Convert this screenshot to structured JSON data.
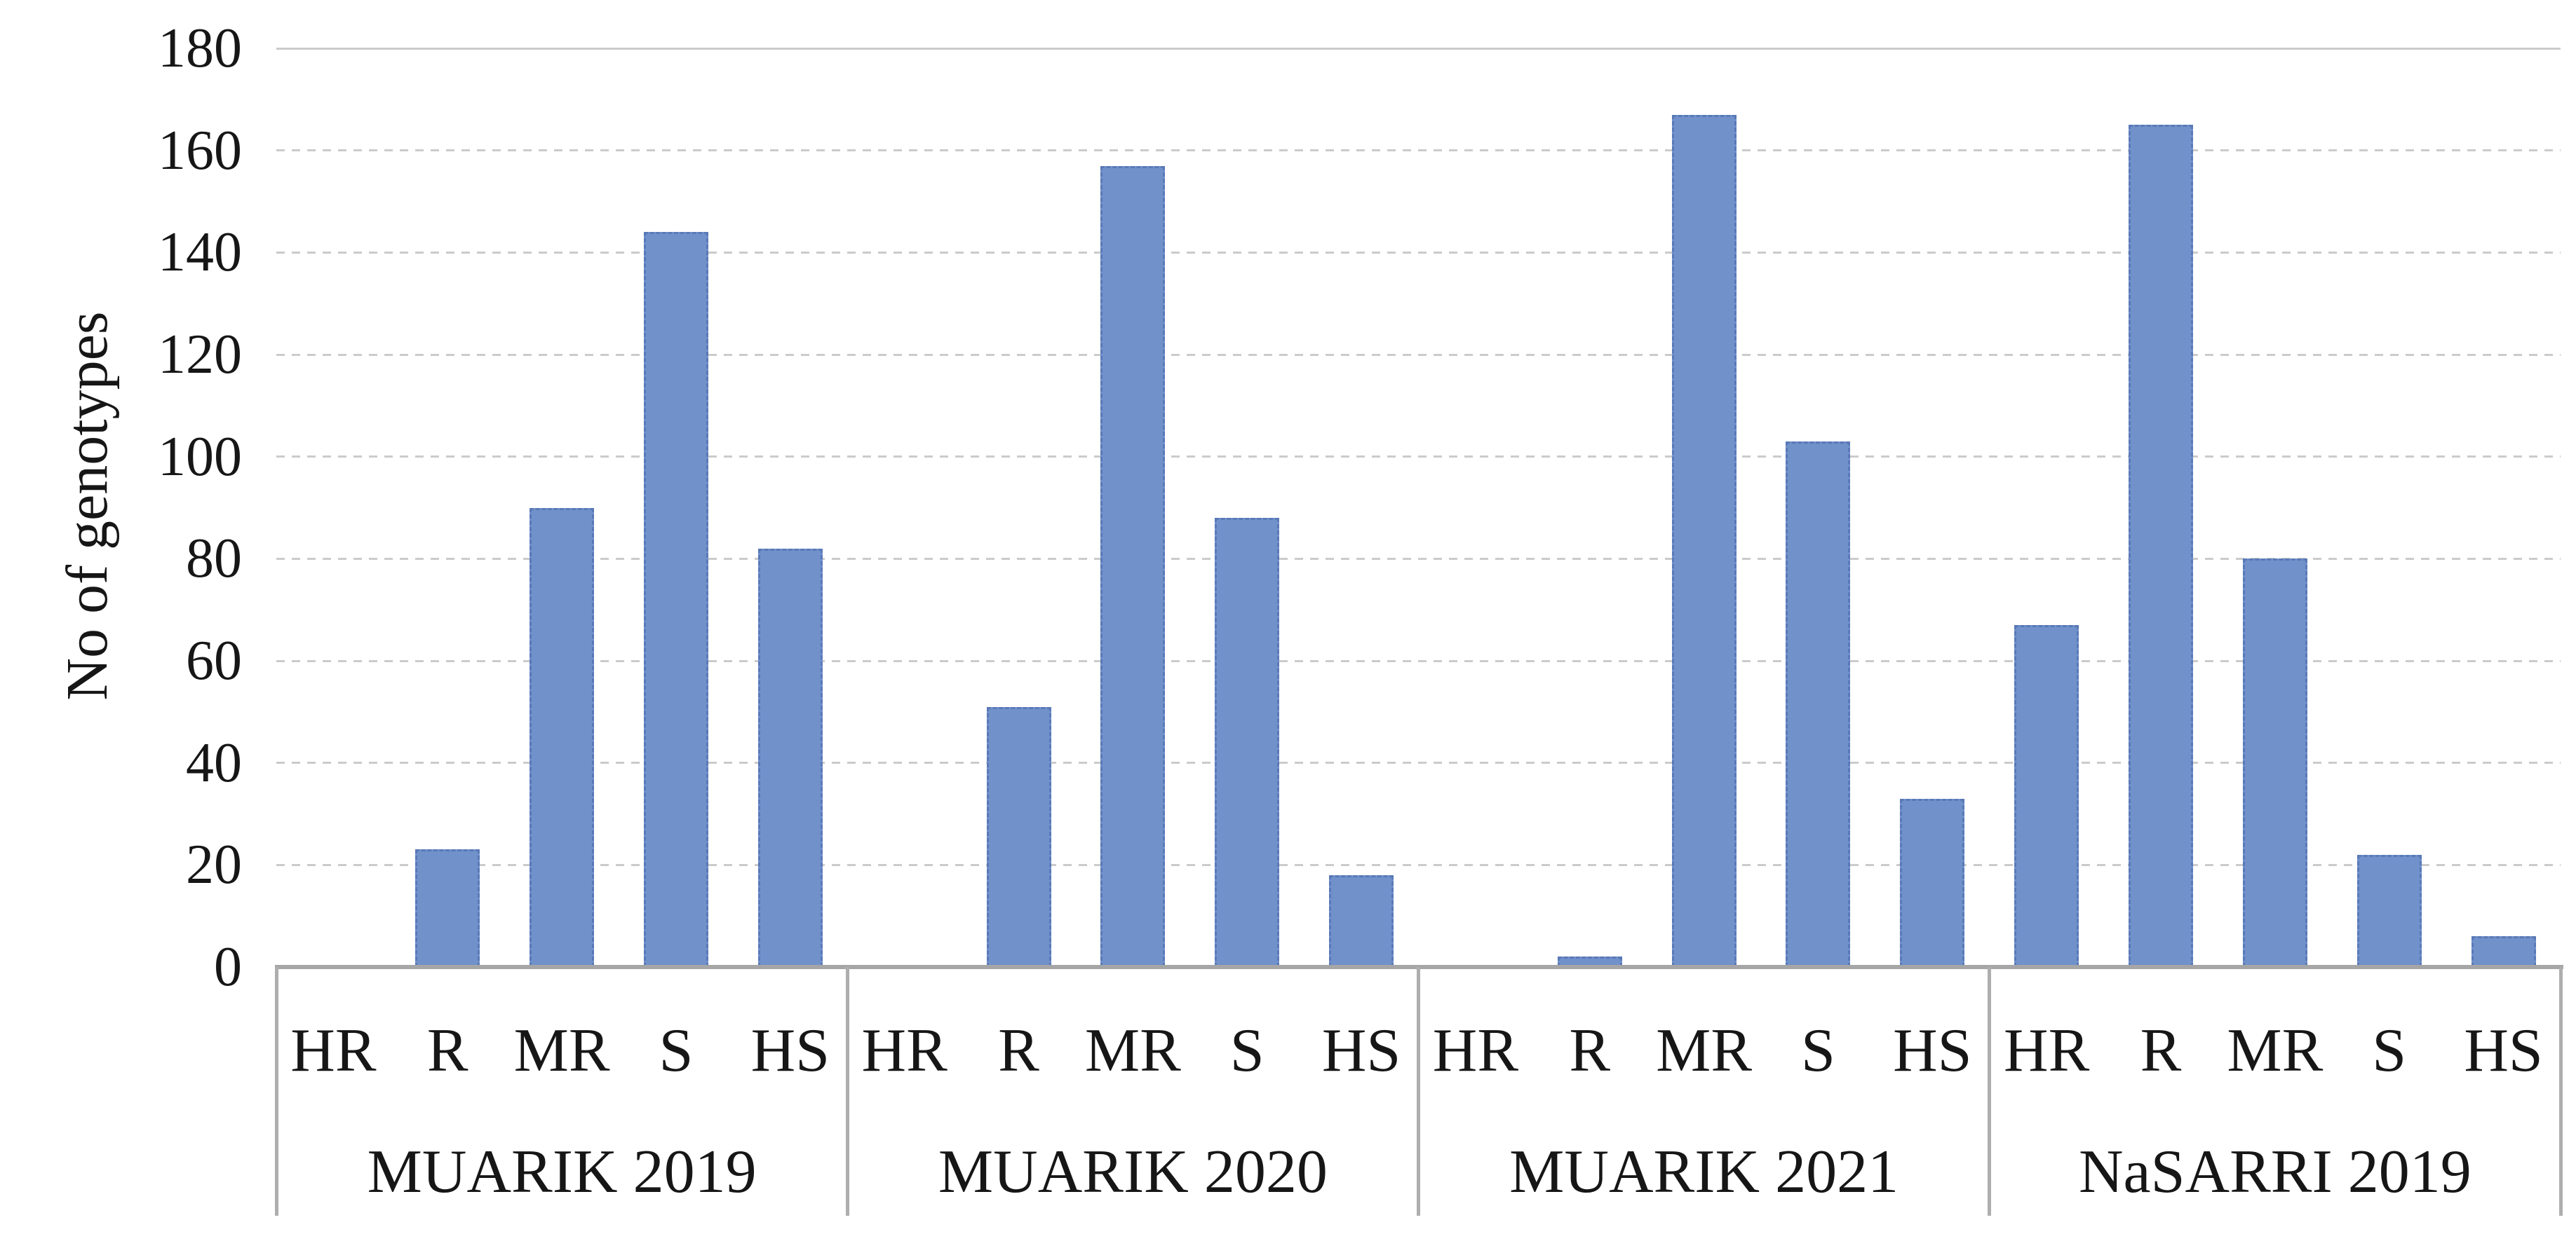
{
  "chart_data": {
    "type": "bar",
    "title": "",
    "ylabel": "No of genotypes",
    "xlabel": "",
    "ylim": [
      0,
      180
    ],
    "ytick_step": 20,
    "yticks": [
      0,
      20,
      40,
      60,
      80,
      100,
      120,
      140,
      160,
      180
    ],
    "grid": "horizontal-dashed",
    "legend_position": "none",
    "categories": [
      "HR",
      "R",
      "MR",
      "S",
      "HS"
    ],
    "groups": [
      {
        "label": "MUARIK 2019",
        "values": [
          0,
          23,
          90,
          144,
          82
        ]
      },
      {
        "label": "MUARIK 2020",
        "values": [
          0,
          51,
          157,
          88,
          18
        ]
      },
      {
        "label": "MUARIK 2021",
        "values": [
          0,
          2,
          167,
          103,
          33
        ]
      },
      {
        "label": "NaSARRI 2019",
        "values": [
          67,
          165,
          80,
          22,
          6
        ]
      }
    ],
    "colors": {
      "bar_fill": "#7191cb",
      "bar_border": "#4666a8",
      "gridline": "#cbcbcb",
      "axis": "#a6a6a6",
      "text": "#161616"
    }
  }
}
